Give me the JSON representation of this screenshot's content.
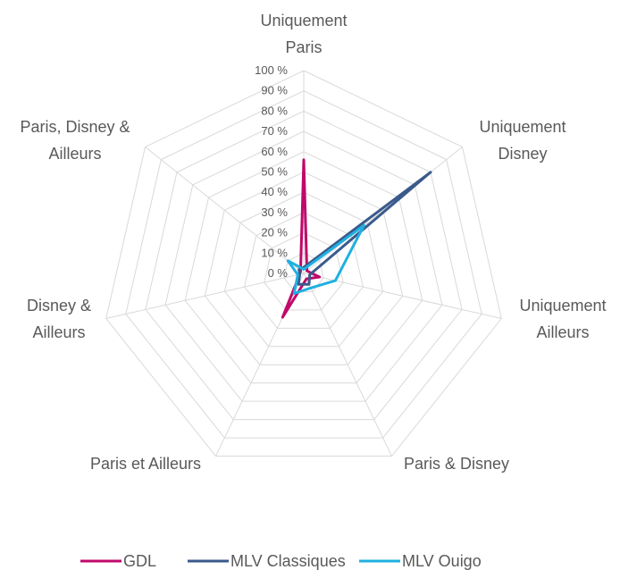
{
  "chart_data": {
    "type": "radar",
    "categories": [
      "Uniquement Paris",
      "Uniquement Disney",
      "Uniquement Ailleurs",
      "Paris & Disney",
      "Paris et Ailleurs",
      "Disney & Ailleurs",
      "Paris, Disney & Ailleurs"
    ],
    "series": [
      {
        "name": "GDL",
        "color": "#c0086a",
        "values": [
          56,
          2,
          8,
          3,
          24,
          2,
          2
        ]
      },
      {
        "name": "MLV Classiques",
        "color": "#3a5a8c",
        "values": [
          3,
          80,
          3,
          6,
          6,
          2,
          3
        ]
      },
      {
        "name": "MLV Ouigo",
        "color": "#1fb0e0",
        "values": [
          2,
          38,
          16,
          8,
          11,
          3,
          10
        ]
      }
    ],
    "ylim": [
      0,
      100
    ],
    "yticks": [
      {
        "value": 0,
        "label": "0 %"
      },
      {
        "value": 10,
        "label": "10 %"
      },
      {
        "value": 20,
        "label": "20 %"
      },
      {
        "value": 30,
        "label": "30 %"
      },
      {
        "value": 40,
        "label": "40 %"
      },
      {
        "value": 50,
        "label": "50 %"
      },
      {
        "value": 60,
        "label": "60 %"
      },
      {
        "value": 70,
        "label": "70 %"
      },
      {
        "value": 80,
        "label": "80 %"
      },
      {
        "value": 90,
        "label": "90 %"
      },
      {
        "value": 100,
        "label": "100 %"
      }
    ],
    "grid": true,
    "legend": "bottom"
  }
}
